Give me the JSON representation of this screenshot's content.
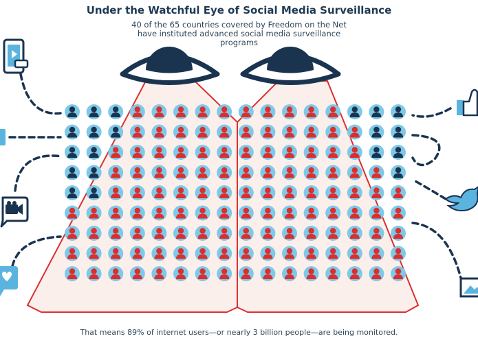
{
  "header": {
    "title": "Under the Watchful Eye of Social Media Surveillance",
    "subtitle": "40 of the 65 countries covered by Freedom on the Net have instituted advanced social media surveillance programs"
  },
  "footer": {
    "text": "That means 89% of internet users—or nearly 3 billion people—are being monitored."
  },
  "colors": {
    "navy": "#1a3450",
    "red": "#d9302f",
    "light_blue": "#7fc9e8",
    "cone_fill": "#fbefec",
    "icon_blue": "#5bb3e0"
  },
  "grid_chart": {
    "columns": 16,
    "rows": 9,
    "monitored_share_percent": 89,
    "navy_head_counts_per_row": [
      3,
      3,
      2,
      2,
      2,
      0,
      0,
      0,
      0
    ],
    "navy_tail_counts_per_row": [
      3,
      2,
      2,
      1,
      0,
      0,
      0,
      0,
      0
    ]
  },
  "side_icons": {
    "left": [
      "phone-video-icon",
      "social-card-icon",
      "video-camera-chat-icon",
      "heart-chat-icon"
    ],
    "right": [
      "thumbs-up-icon",
      "twitter-bird-icon",
      "image-icon"
    ]
  }
}
